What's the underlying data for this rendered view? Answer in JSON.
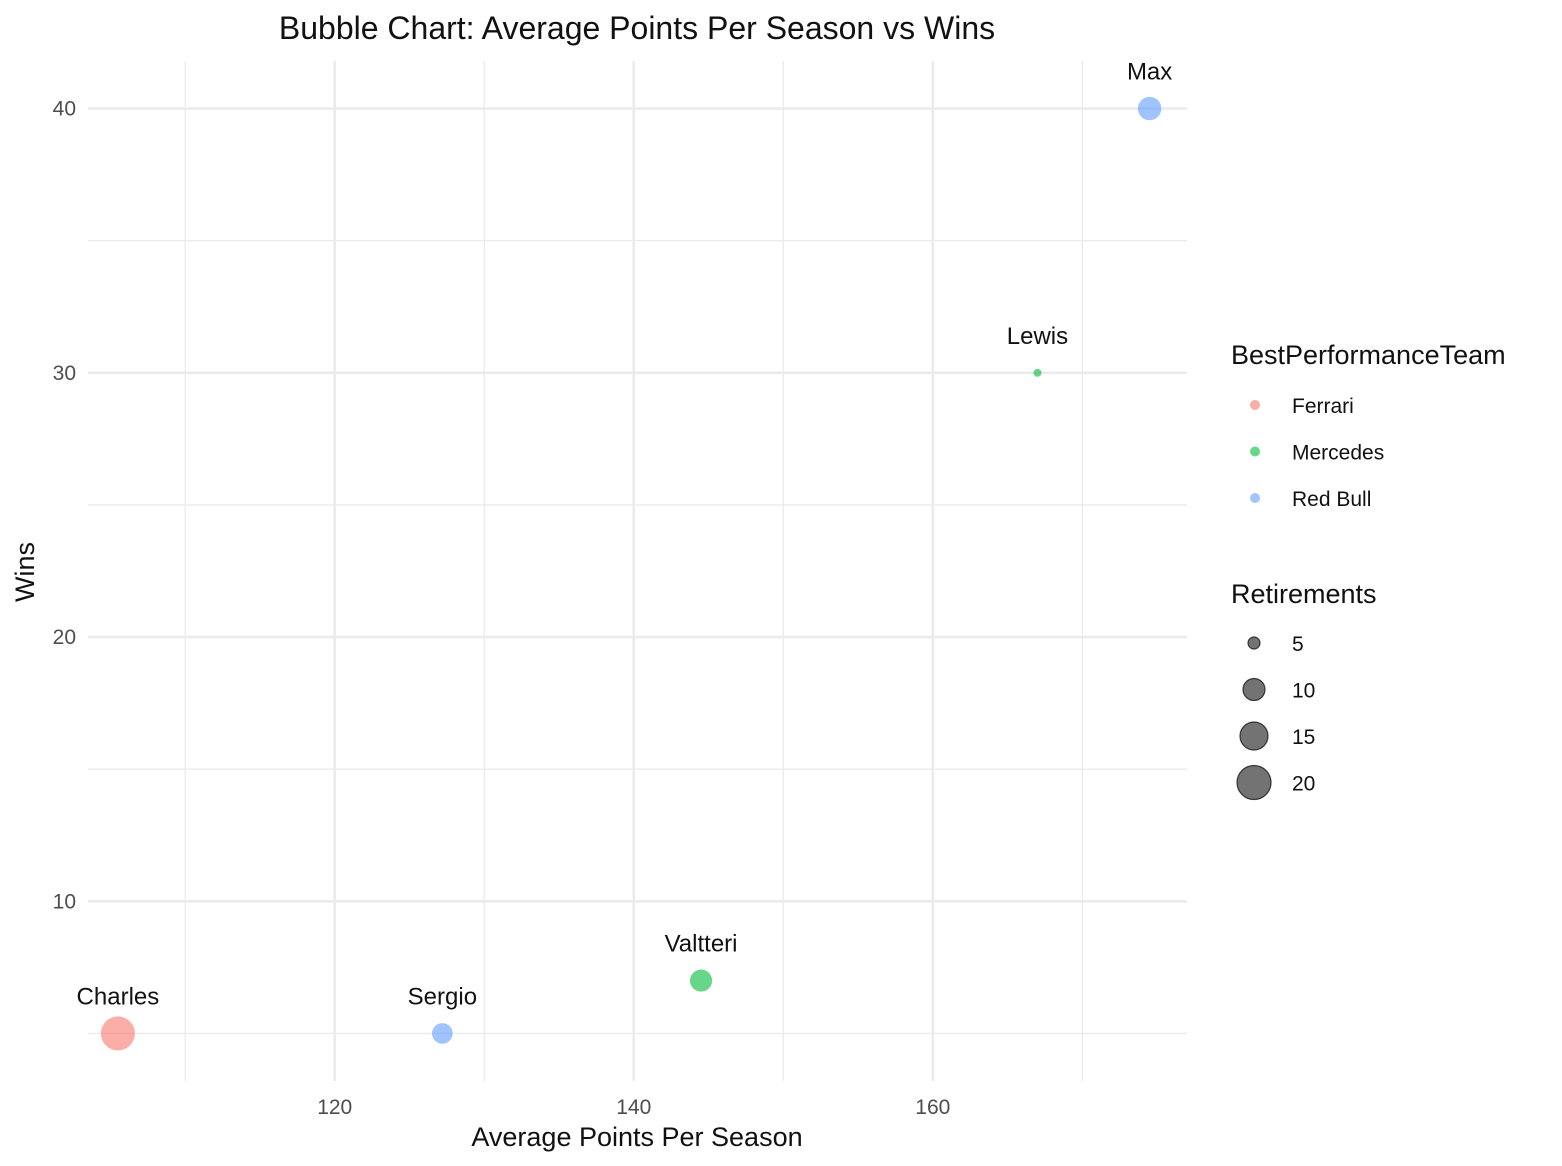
{
  "chart_data": {
    "type": "scatter",
    "title": "Bubble Chart: Average Points Per Season vs Wins",
    "xlabel": "Average Points Per Season",
    "ylabel": "Wins",
    "xlim": [
      103.5,
      177
    ],
    "ylim": [
      3.2,
      41.8
    ],
    "x_ticks": [
      120,
      140,
      160
    ],
    "x_minor_ticks": [
      110,
      130,
      150,
      170
    ],
    "y_ticks": [
      10,
      20,
      30,
      40
    ],
    "y_minor_ticks": [
      5,
      15,
      25,
      35
    ],
    "grid": true,
    "points": [
      {
        "label": "Max",
        "x": 174.5,
        "y": 40,
        "team": "Red Bull",
        "retirements": 10
      },
      {
        "label": "Lewis",
        "x": 167,
        "y": 30,
        "team": "Mercedes",
        "retirements": 2
      },
      {
        "label": "Valtteri",
        "x": 144.5,
        "y": 7,
        "team": "Mercedes",
        "retirements": 9
      },
      {
        "label": "Sergio",
        "x": 127.2,
        "y": 5,
        "team": "Red Bull",
        "retirements": 8
      },
      {
        "label": "Charles",
        "x": 105.5,
        "y": 5,
        "team": "Ferrari",
        "retirements": 20
      }
    ],
    "color_legend": {
      "title": "BestPerformanceTeam",
      "position": "right",
      "entries": [
        {
          "name": "Ferrari",
          "color": "#F8766D"
        },
        {
          "name": "Mercedes",
          "color": "#00BA38"
        },
        {
          "name": "Red Bull",
          "color": "#619CFF"
        }
      ]
    },
    "size_legend": {
      "title": "Retirements",
      "position": "right",
      "entries": [
        {
          "value": 5,
          "label": "5"
        },
        {
          "value": 10,
          "label": "10"
        },
        {
          "value": 15,
          "label": "15"
        },
        {
          "value": 20,
          "label": "20"
        }
      ]
    },
    "size_range": [
      2,
      20
    ],
    "point_alpha": 0.55
  }
}
